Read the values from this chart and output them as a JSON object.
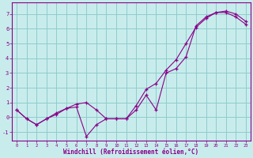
{
  "xlabel": "Windchill (Refroidissement éolien,°C)",
  "background_color": "#c8ecec",
  "grid_color": "#90cccc",
  "line_color": "#880088",
  "line1_x": [
    0,
    1,
    2,
    3,
    4,
    5,
    6,
    7,
    8,
    9,
    10,
    11,
    12,
    13,
    14,
    15,
    16,
    17,
    18,
    19,
    20,
    21,
    22,
    23
  ],
  "line1_y": [
    0.5,
    -0.1,
    -0.5,
    -0.1,
    0.3,
    0.6,
    0.9,
    1.0,
    0.5,
    -0.1,
    -0.1,
    -0.1,
    0.8,
    1.9,
    2.3,
    3.2,
    3.9,
    5.0,
    6.1,
    6.7,
    7.1,
    7.1,
    6.8,
    6.3
  ],
  "line2_x": [
    0,
    1,
    2,
    3,
    4,
    5,
    6,
    7,
    8,
    9,
    10,
    11,
    12,
    13,
    14,
    15,
    16,
    17,
    18,
    19,
    20,
    21,
    22,
    23
  ],
  "line2_y": [
    0.5,
    -0.1,
    -0.5,
    -0.1,
    0.2,
    0.6,
    0.7,
    -1.3,
    -0.5,
    -0.1,
    -0.1,
    -0.1,
    0.5,
    1.5,
    0.5,
    3.0,
    3.3,
    4.1,
    6.2,
    6.8,
    7.1,
    7.2,
    7.0,
    6.5
  ],
  "ylim": [
    -1.6,
    7.8
  ],
  "xlim": [
    -0.5,
    23.5
  ],
  "yticks": [
    -1,
    0,
    1,
    2,
    3,
    4,
    5,
    6,
    7
  ],
  "xticks": [
    0,
    1,
    2,
    3,
    4,
    5,
    6,
    7,
    8,
    9,
    10,
    11,
    12,
    13,
    14,
    15,
    16,
    17,
    18,
    19,
    20,
    21,
    22,
    23
  ],
  "xlabel_color": "#880088",
  "tick_color": "#880088",
  "spine_color": "#880088"
}
